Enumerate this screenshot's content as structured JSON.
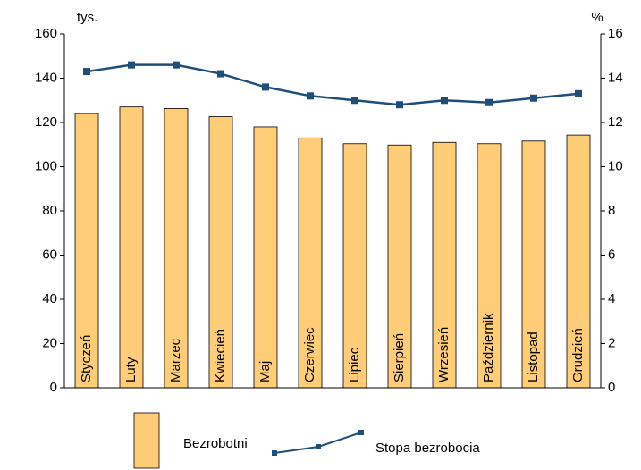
{
  "chart_data": {
    "type": "bar",
    "y_label": "tys.",
    "y2_label": "%",
    "categories": [
      "Styczeń",
      "Luty",
      "Marzec",
      "Kwiecień",
      "Maj",
      "Czerwiec",
      "Lipiec",
      "Sierpień",
      "Wrzesień",
      "Październik",
      "Listopad",
      "Grudzień"
    ],
    "series": [
      {
        "name": "Bezrobotni",
        "type": "bar",
        "color": "#ffcc77",
        "values": [
          124,
          127,
          126.3,
          122.6,
          118,
          113,
          110.4,
          109.8,
          111,
          110.4,
          111.6,
          114.3
        ]
      },
      {
        "name": "Stopa bezrobocia",
        "type": "line",
        "axis": "y2",
        "color": "#1f4e79",
        "values": [
          14.3,
          14.6,
          14.6,
          14.2,
          13.6,
          13.2,
          13.0,
          12.8,
          13.0,
          12.9,
          13.1,
          13.3
        ]
      }
    ],
    "ylim": [
      0,
      160
    ],
    "yticks": [
      0,
      20,
      40,
      60,
      80,
      100,
      120,
      140,
      160
    ],
    "y2lim": [
      0,
      16
    ],
    "y2ticks": [
      0,
      2,
      4,
      6,
      8,
      10,
      12,
      14,
      16
    ]
  }
}
